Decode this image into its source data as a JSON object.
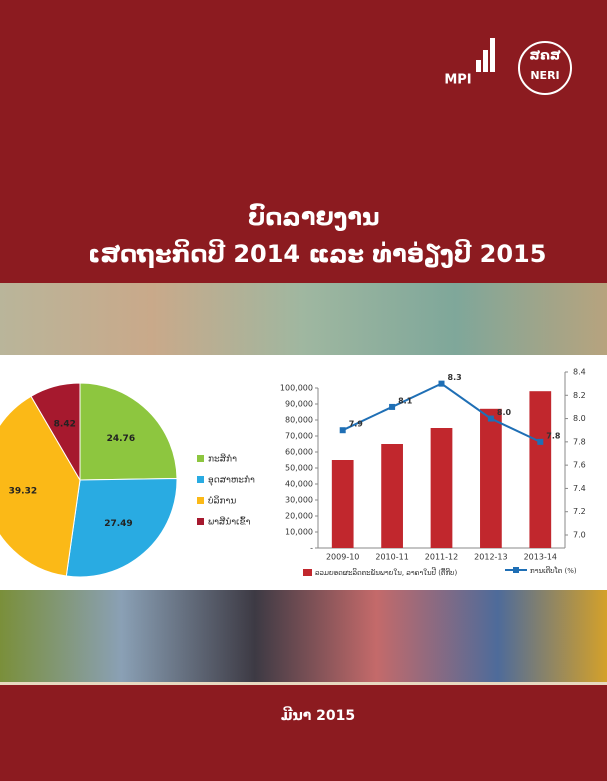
{
  "logos": {
    "left": "MPI",
    "right_top": "ສຄສ",
    "right_bottom": "NERI"
  },
  "title": [
    "ບົດລາຍງານ",
    "ເສດຖະກິດປີ 2014 ແລະ ທ່າອ່ຽງປີ 2015"
  ],
  "date": "ມີນາ 2015",
  "chart_data": [
    {
      "type": "pie",
      "categories": [
        "ກະສິກຳ",
        "ອຸດສາຫະກຳ",
        "ບໍລິການ",
        "ພາສີນຳເຂົ້າ"
      ],
      "values": [
        24.76,
        27.49,
        39.32,
        8.42
      ],
      "colors": [
        "#8dc63f",
        "#29abe2",
        "#fbb917",
        "#a6192e"
      ]
    },
    {
      "type": "combo",
      "categories": [
        "2009-10",
        "2010-11",
        "2011-12",
        "2012-13",
        "2013-14"
      ],
      "series": [
        {
          "name": "ລວມຍອດຜະລິດຕະພັນພາຍໃນ, ລາຄາໃນປີ (ຕື້ກີບ)",
          "type": "bar",
          "color": "#c1272d",
          "values": [
            55000,
            65000,
            75000,
            87000,
            98000
          ]
        },
        {
          "name": "ການເຕີບໂຕ (%)",
          "type": "line",
          "axis": "y2",
          "color": "#1f6fb5",
          "values": [
            7.9,
            8.1,
            8.3,
            8.0,
            7.8
          ],
          "value_labels": [
            "7.9",
            "8.1",
            "8.3",
            "8.0",
            "7.8"
          ]
        }
      ],
      "ylim": [
        0,
        100000
      ],
      "yticks": [
        {
          "value": 0,
          "label": "-"
        },
        {
          "value": 10000,
          "label": "10,000"
        },
        {
          "value": 20000,
          "label": "20,000"
        },
        {
          "value": 30000,
          "label": "30,000"
        },
        {
          "value": 40000,
          "label": "40,000"
        },
        {
          "value": 50000,
          "label": "50,000"
        },
        {
          "value": 60000,
          "label": "60,000"
        },
        {
          "value": 70000,
          "label": "70,000"
        },
        {
          "value": 80000,
          "label": "80,000"
        },
        {
          "value": 90000,
          "label": "90,000"
        },
        {
          "value": 100000,
          "label": "100,000"
        }
      ],
      "y2lim": [
        7,
        8.4
      ],
      "y2ticks": [
        {
          "value": 7,
          "label": "7.0"
        },
        7.2,
        7.4,
        7.6,
        7.8,
        {
          "value": 8,
          "label": "8.0"
        },
        8.2,
        8.4
      ]
    }
  ]
}
